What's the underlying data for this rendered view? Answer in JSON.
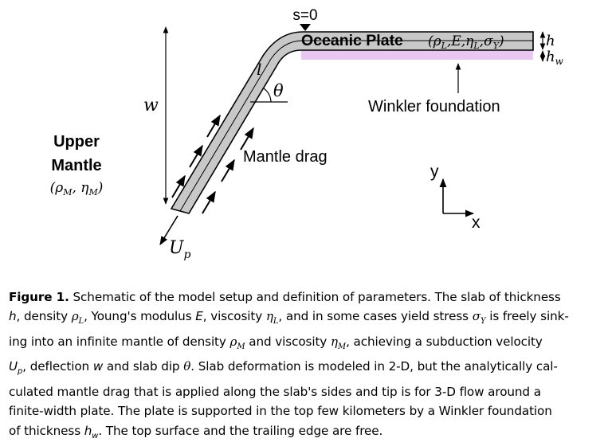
{
  "figure": {
    "labels": {
      "s0": "s=0",
      "oceanic_plate": "Oceanic Plate",
      "oceanic_params": "(ρL,E,ηL,σY)",
      "h": "h",
      "hw": "hw",
      "l": "l",
      "theta": "θ",
      "w": "w",
      "winkler": "Winkler foundation",
      "mantle_drag": "Mantle drag",
      "upper": "Upper",
      "mantle": "Mantle",
      "mantle_params": "(ρM, ηM)",
      "up": "Up",
      "axis_y": "y",
      "axis_x": "x"
    },
    "colors": {
      "slab_fill": "#c8c8c8",
      "winkler_fill": "#e8c8f0"
    }
  },
  "caption": {
    "label": "Figure 1.",
    "lines": [
      " Schematic of the model setup and definition of parameters. The slab of thickness",
      "h, density ρL, Young's modulus E, viscosity ηL, and in some cases yield stress σY is freely sink-",
      "ing into an infinite mantle of density ρM and viscosity ηM, achieving a subduction velocity",
      "Up, deflection w and slab dip θ. Slab deformation is modeled in 2-D, but the analytically cal-",
      "culated mantle drag that is applied along the slab's sides and tip is for 3-D flow around a",
      "finite-width plate. The plate is supported in the top few kilometers by a Winkler foundation",
      "of thickness hw. The top surface and the trailing edge are free."
    ]
  }
}
